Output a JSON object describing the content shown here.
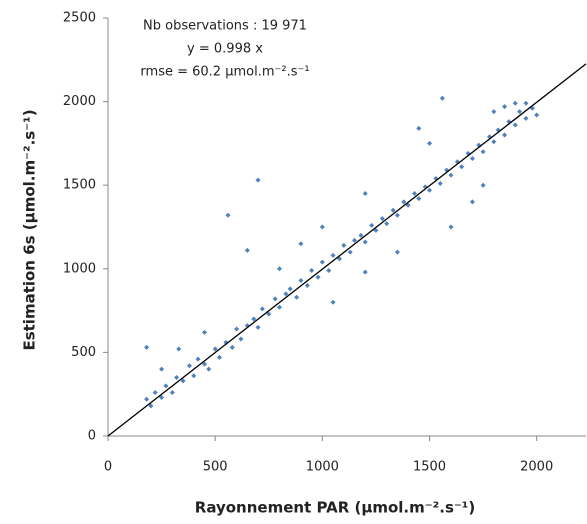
{
  "chart_data": {
    "type": "scatter",
    "annotations": [
      "Nb observations : 19 971",
      "y = 0.998 x",
      "rmse = 60.2 µmol.m⁻².s⁻¹"
    ],
    "x_label": "Rayonnement PAR (µmol.m⁻².s⁻¹)",
    "y_label": "Estimation 6s (µmol.m⁻².s⁻¹)",
    "color": "#4f81bd",
    "x": [
      180,
      200,
      220,
      250,
      270,
      300,
      320,
      350,
      380,
      400,
      420,
      450,
      470,
      500,
      520,
      550,
      580,
      600,
      620,
      650,
      680,
      700,
      720,
      750,
      780,
      800,
      830,
      850,
      880,
      900,
      930,
      950,
      980,
      1000,
      1030,
      1050,
      1080,
      1100,
      1130,
      1150,
      1180,
      1200,
      1230,
      1250,
      1280,
      1300,
      1330,
      1350,
      1380,
      1400,
      1430,
      1450,
      1480,
      1500,
      1530,
      1550,
      1580,
      1600,
      1630,
      1650,
      1680,
      1700,
      1730,
      1750,
      1780,
      1800,
      1820,
      1850,
      1870,
      1900,
      1920,
      1950,
      1980,
      2000,
      1900,
      1850,
      1950,
      1800,
      180,
      330,
      560,
      700,
      650,
      1450,
      1560,
      1000,
      1200,
      1600,
      1700,
      1050,
      1350,
      450,
      250,
      800,
      1500,
      1750,
      1200,
      900
    ],
    "values": [
      220,
      180,
      260,
      230,
      300,
      260,
      350,
      330,
      420,
      360,
      460,
      430,
      400,
      520,
      470,
      560,
      530,
      640,
      580,
      660,
      700,
      650,
      760,
      730,
      820,
      770,
      850,
      880,
      830,
      930,
      900,
      990,
      950,
      1040,
      990,
      1080,
      1060,
      1140,
      1100,
      1170,
      1200,
      1160,
      1260,
      1230,
      1300,
      1270,
      1350,
      1320,
      1400,
      1380,
      1450,
      1420,
      1490,
      1470,
      1540,
      1510,
      1590,
      1560,
      1640,
      1610,
      1690,
      1660,
      1740,
      1700,
      1790,
      1760,
      1830,
      1800,
      1880,
      1860,
      1940,
      1900,
      1960,
      1920,
      1990,
      1970,
      1990,
      1940,
      530,
      520,
      1320,
      1530,
      1110,
      1840,
      2020,
      1250,
      1450,
      1250,
      1400,
      800,
      1100,
      620,
      400,
      1000,
      1750,
      1500,
      980,
      1150
    ],
    "fit_line": {
      "x": [
        0,
        2230
      ],
      "values": [
        0,
        2225.5
      ],
      "color": "#000000"
    },
    "xlim": [
      0,
      2230
    ],
    "ylim": [
      0,
      2500
    ],
    "xticks": [
      0,
      500,
      1000,
      1500,
      2000
    ],
    "yticks": [
      0,
      500,
      1000,
      1500,
      2000,
      2500
    ],
    "grid": false
  }
}
